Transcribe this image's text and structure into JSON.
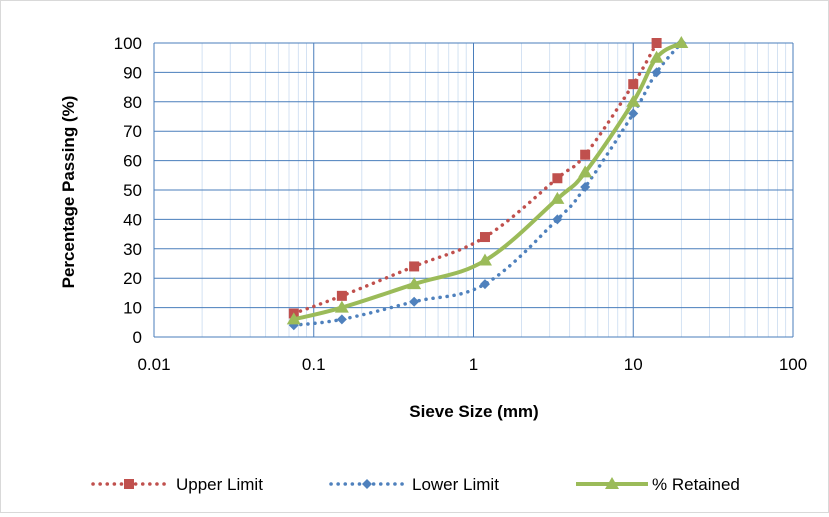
{
  "chart_data": {
    "type": "scatter",
    "title": "",
    "xlabel": "Sieve Size (mm)",
    "ylabel": "Percentage Passing (%)",
    "xscale": "log",
    "xlim": [
      0.01,
      100
    ],
    "ylim": [
      0,
      100
    ],
    "xticks": [
      0.01,
      0.1,
      1,
      10,
      100
    ],
    "xtick_labels": [
      "0.01",
      "0.1",
      "1",
      "10",
      "100"
    ],
    "yticks": [
      0,
      10,
      20,
      30,
      40,
      50,
      60,
      70,
      80,
      90,
      100
    ],
    "ytick_labels": [
      "0",
      "10",
      "20",
      "30",
      "40",
      "50",
      "60",
      "70",
      "80",
      "90",
      "100"
    ],
    "grid": true,
    "legend_position": "bottom",
    "series": [
      {
        "name": "Upper Limit",
        "color": "#c0504d",
        "style": "dotted",
        "marker": "square",
        "x": [
          0.075,
          0.15,
          0.425,
          1.18,
          3.35,
          5.0,
          10.0,
          14.0
        ],
        "y": [
          8,
          14,
          24,
          34,
          54,
          62,
          86,
          100
        ]
      },
      {
        "name": "Lower Limit",
        "color": "#4f81bd",
        "style": "dotted",
        "marker": "diamond",
        "x": [
          0.075,
          0.15,
          0.425,
          1.18,
          3.35,
          5.0,
          10.0,
          14.0,
          20.0
        ],
        "y": [
          4,
          6,
          12,
          18,
          40,
          51,
          76,
          90,
          100
        ]
      },
      {
        "name": "% Retained",
        "color": "#9bbb59",
        "style": "solid",
        "marker": "triangle",
        "x": [
          0.075,
          0.15,
          0.425,
          1.18,
          3.35,
          5.0,
          10.0,
          14.0,
          20.0
        ],
        "y": [
          6,
          10,
          18,
          26,
          47,
          56,
          80,
          95,
          100
        ]
      }
    ]
  }
}
